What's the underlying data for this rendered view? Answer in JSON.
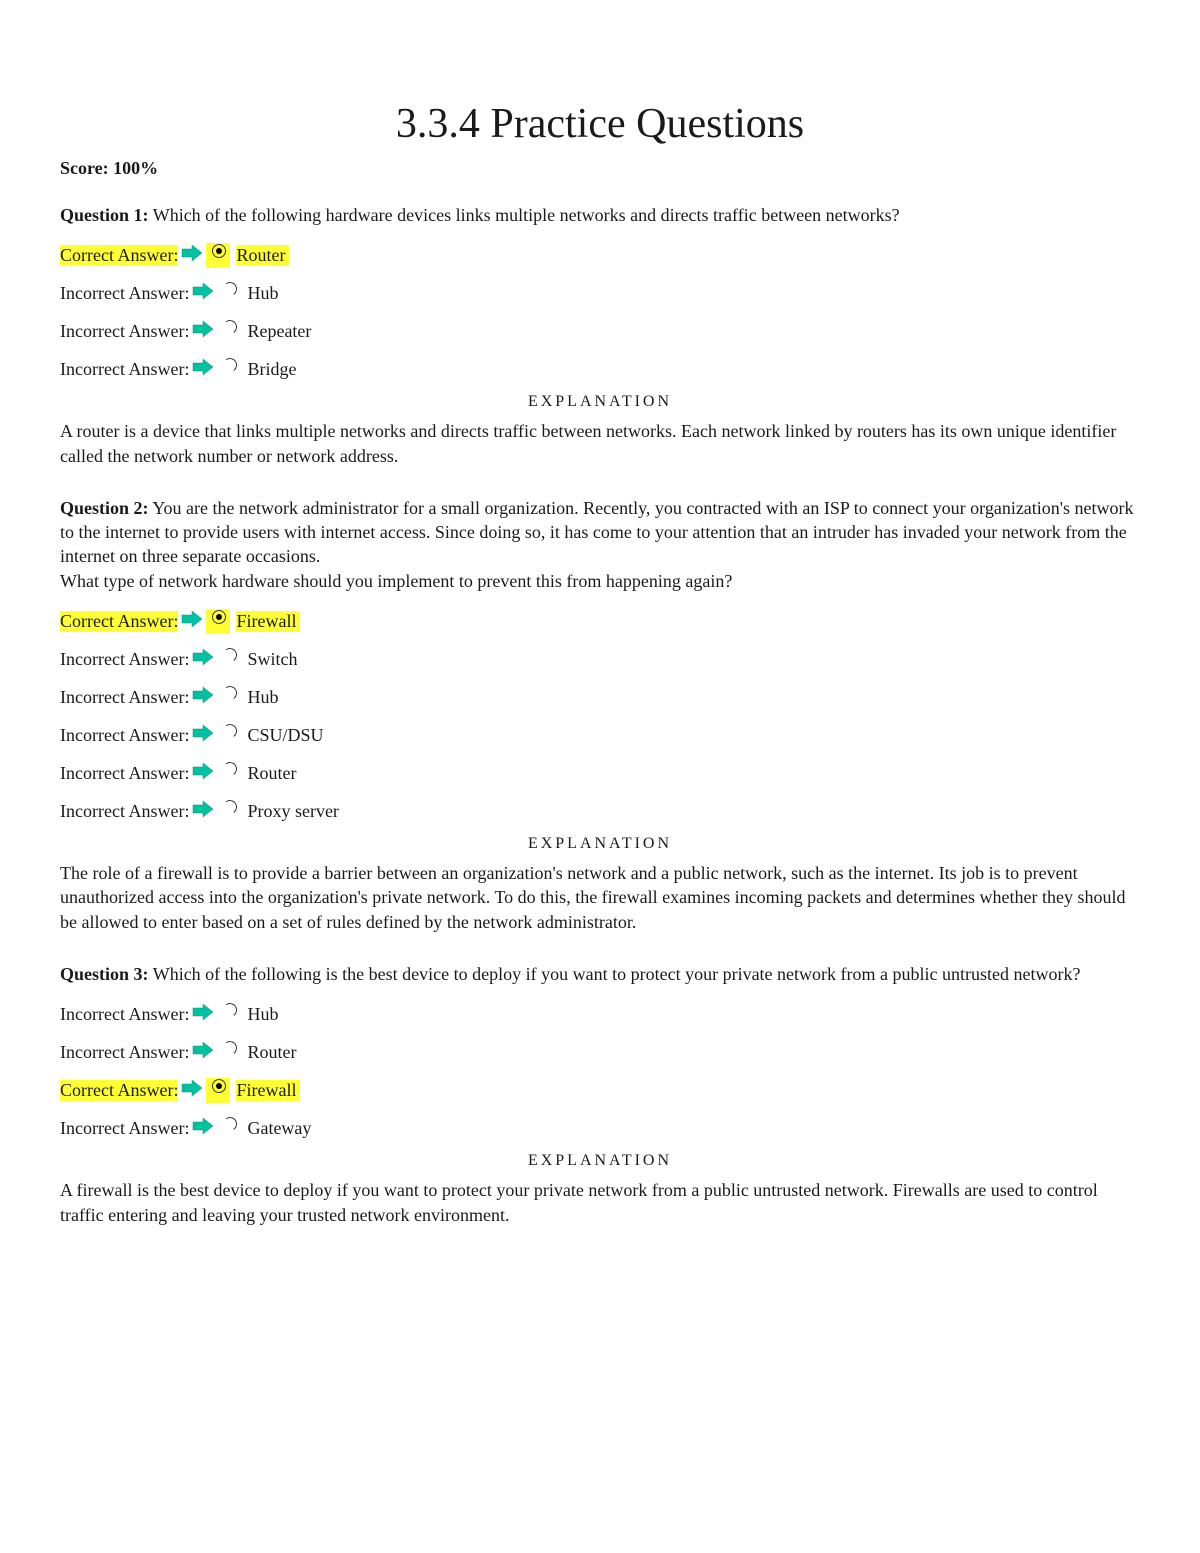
{
  "title": "3.3.4 Practice Questions",
  "score_label": "Score: 100%",
  "explanation_heading": "EXPLANATION",
  "labels": {
    "correct": "Correct Answer:",
    "incorrect": "Incorrect Answer:"
  },
  "colors": {
    "highlight": "#ffff33",
    "arrow": "#00c2a0",
    "text": "#1a1a1a",
    "background": "#ffffff"
  },
  "questions": [
    {
      "number": "Question 1:",
      "prompt": "Which of the following hardware devices links multiple networks and directs traffic between networks?",
      "answers": [
        {
          "text": "Router",
          "correct": true
        },
        {
          "text": "Hub",
          "correct": false
        },
        {
          "text": "Repeater",
          "correct": false
        },
        {
          "text": "Bridge",
          "correct": false
        }
      ],
      "explanation": "A router is a device that links multiple networks and directs traffic between networks. Each network linked by routers has its own unique identifier called the network number or network address."
    },
    {
      "number": "Question 2:",
      "prompt": "You are the network administrator for a small organization. Recently, you contracted with an ISP to connect your organization's network to the internet to provide users with internet access. Since doing so, it has come to your attention that an intruder has invaded your network from the internet on three separate occasions.",
      "prompt2": "What type of network hardware should you implement to prevent this from happening again?",
      "answers": [
        {
          "text": "Firewall",
          "correct": true
        },
        {
          "text": "Switch",
          "correct": false
        },
        {
          "text": "Hub",
          "correct": false
        },
        {
          "text": "CSU/DSU",
          "correct": false
        },
        {
          "text": "Router",
          "correct": false
        },
        {
          "text": "Proxy server",
          "correct": false
        }
      ],
      "explanation": "The role of a firewall is to provide a barrier between an organization's network and a public network, such as the internet. Its job is to prevent unauthorized access into the organization's private network. To do this, the firewall examines incoming packets and determines whether they should be allowed to enter based on a set of rules defined by the network administrator."
    },
    {
      "number": "Question 3:",
      "prompt": "Which of the following is the best device to deploy if you want to protect your private network from a public untrusted network?",
      "answers": [
        {
          "text": "Hub",
          "correct": false
        },
        {
          "text": "Router",
          "correct": false
        },
        {
          "text": "Firewall",
          "correct": true
        },
        {
          "text": "Gateway",
          "correct": false
        }
      ],
      "explanation": "A firewall is the best device to deploy if you want to protect your private network from a public untrusted network. Firewalls are used to control traffic entering and leaving your trusted network environment."
    }
  ]
}
